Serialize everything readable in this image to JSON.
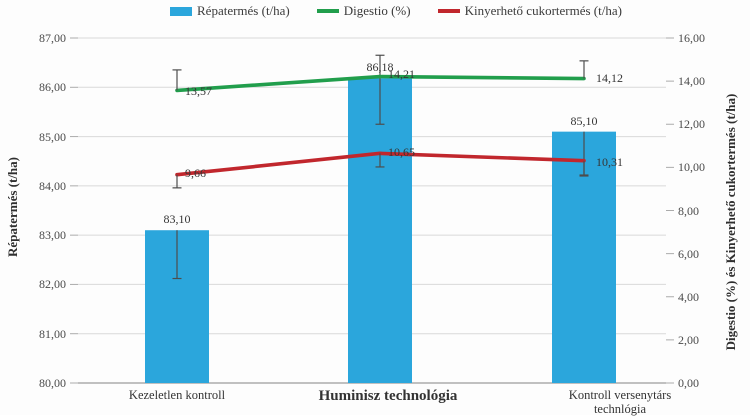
{
  "chart_data": {
    "type": "combo-bar-line",
    "title": "",
    "legend_position": "top",
    "grid": true,
    "categories": [
      "Kezeletlen kontroll",
      "Huminisz technológia",
      "Kontroll versenytárs technlógia"
    ],
    "left_axis": {
      "title": "Répatermés (t/ha)",
      "min": 80,
      "max": 87,
      "step": 1,
      "tick_labels": [
        "80,00",
        "81,00",
        "82,00",
        "83,00",
        "84,00",
        "85,00",
        "86,00",
        "87,00"
      ]
    },
    "right_axis": {
      "title": "Digestio (%) és Kinyerhető cukortermés (t/ha)",
      "min": 0,
      "max": 16,
      "step": 2,
      "tick_labels": [
        "0,00",
        "2,00",
        "4,00",
        "6,00",
        "8,00",
        "10,00",
        "12,00",
        "14,00",
        "16,00"
      ]
    },
    "series": [
      {
        "name": "Répatermés (t/ha)",
        "type": "bar",
        "axis": "left",
        "color": "#2BA6DC",
        "values": [
          83.1,
          86.18,
          85.1
        ],
        "labels": [
          "83,10",
          "86,18",
          "85,10"
        ],
        "error_bars": [
          {
            "high": 83.1,
            "low": 82.12,
            "cap_high": false,
            "cap_low": true
          },
          {
            "high": 86.65,
            "low": 85.25,
            "cap_high": true,
            "cap_low": true
          },
          {
            "high": 85.1,
            "low": 84.22,
            "cap_high": false,
            "cap_low": true
          }
        ]
      },
      {
        "name": "Digestio (%)",
        "type": "line",
        "axis": "right",
        "color": "#219E4C",
        "values": [
          13.57,
          14.21,
          14.12
        ],
        "labels": [
          "13,57",
          "14,21",
          "14,12"
        ],
        "error_bars": [
          {
            "high": 14.52,
            "low": 13.57,
            "cap_high": true,
            "cap_low": false
          },
          null,
          {
            "high": 14.94,
            "low": 14.12,
            "cap_high": true,
            "cap_low": false
          }
        ]
      },
      {
        "name": "Kinyerhető cukortermés (t/ha)",
        "type": "line",
        "axis": "right",
        "color": "#C1272D",
        "values": [
          9.66,
          10.65,
          10.31
        ],
        "labels": [
          "9,66",
          "10,65",
          "10,31"
        ],
        "error_bars": [
          {
            "high": 9.66,
            "low": 9.05,
            "cap_high": false,
            "cap_low": true
          },
          {
            "high": 10.65,
            "low": 10.02,
            "cap_high": false,
            "cap_low": true
          },
          {
            "high": 10.31,
            "low": 9.6,
            "cap_high": false,
            "cap_low": true
          }
        ]
      }
    ],
    "colors": {
      "bar": "#2BA6DC",
      "line_green": "#219E4C",
      "line_red": "#C1272D",
      "gridline": "#d9d9d9",
      "axis_line": "#ababab",
      "error_bar": "#4d4d4d",
      "text": "#3b3b3b"
    }
  }
}
